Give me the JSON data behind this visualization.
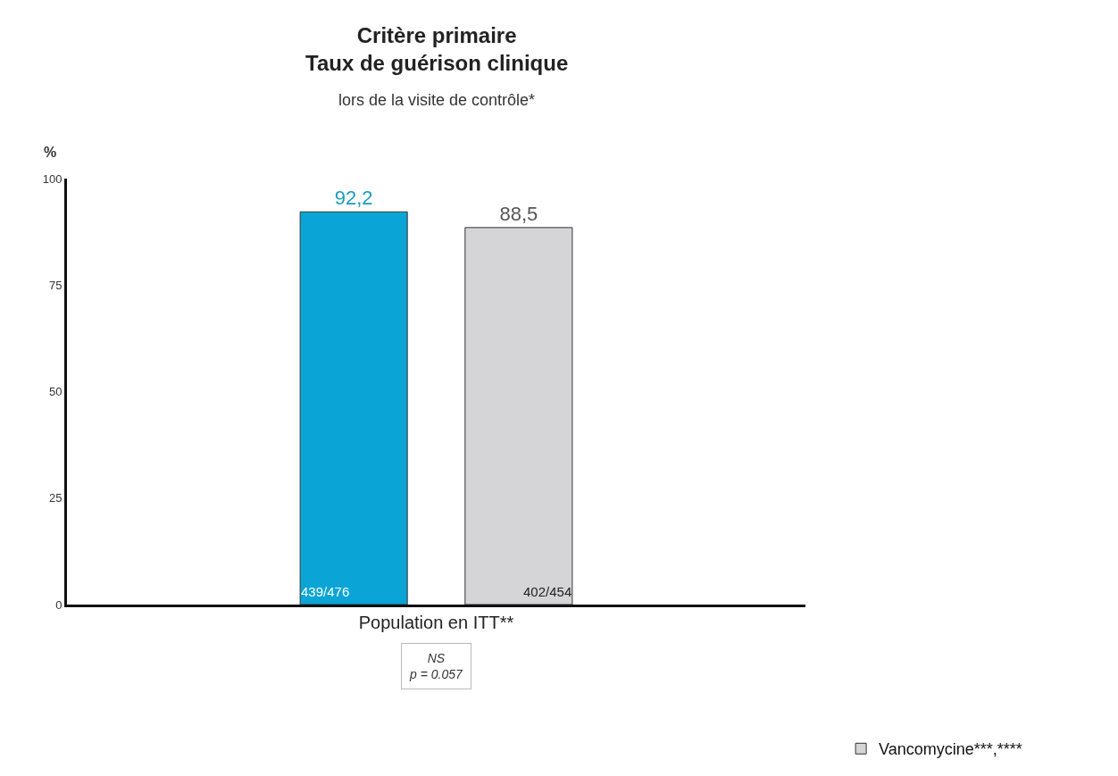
{
  "chart_data": {
    "type": "bar",
    "title": "Critère primaire\nTaux de guérison clinique",
    "subtitle": "lors de la visite de contrôle*",
    "ylabel": "%",
    "categories": [
      "Population en ITT**"
    ],
    "series": [
      {
        "color": "#0aa5d6",
        "values": [
          92.2
        ],
        "value_labels": [
          "92,2"
        ]
      },
      {
        "name": "Vancomycine***,****",
        "color": "#d5d5d7",
        "values": [
          88.5
        ],
        "value_labels": [
          "88,5"
        ]
      }
    ],
    "annotations": [
      "439/476",
      "402/454",
      "NS\np = 0.057"
    ],
    "ylim": [
      0,
      100
    ],
    "yticks": [
      0,
      25,
      50,
      75,
      100
    ],
    "legend": "bottom right"
  }
}
